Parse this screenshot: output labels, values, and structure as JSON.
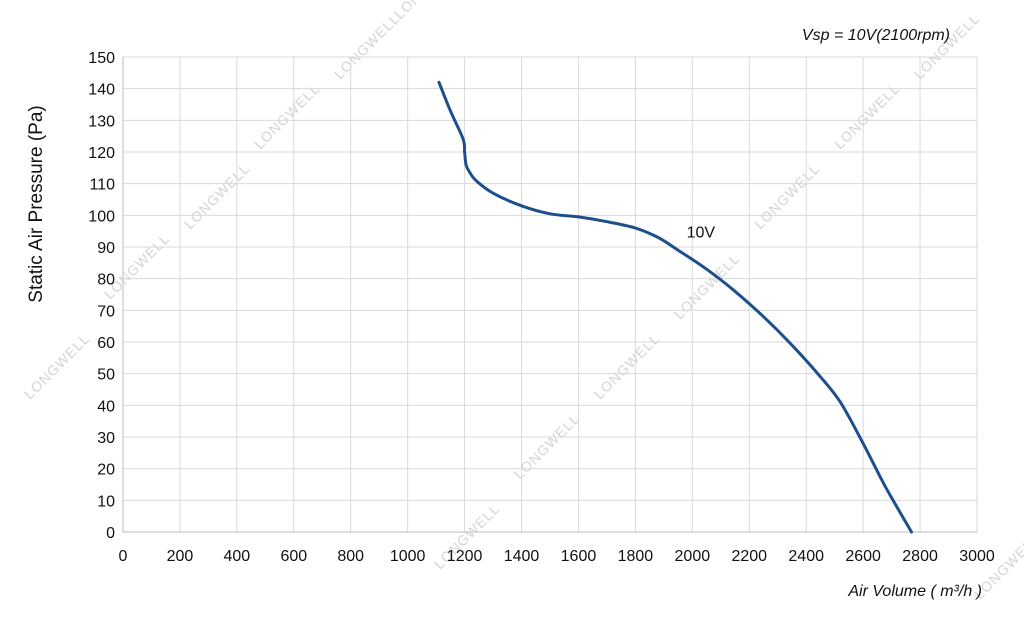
{
  "chart_data": {
    "type": "line",
    "title": "",
    "annotation": "Vsp = 10V(2100rpm)",
    "xlabel": "Air Volume ( m³/h )",
    "ylabel": "Static Air Pressure  (Pa)",
    "xlim": [
      0,
      3000
    ],
    "ylim": [
      0,
      150
    ],
    "x_ticks": [
      0,
      200,
      400,
      600,
      800,
      1000,
      1200,
      1400,
      1600,
      1800,
      2000,
      2200,
      2400,
      2600,
      2800,
      3000
    ],
    "y_ticks": [
      0,
      10,
      20,
      30,
      40,
      50,
      60,
      70,
      80,
      90,
      100,
      110,
      120,
      130,
      140,
      150
    ],
    "grid": true,
    "line_color": "#1f4e8c",
    "series": [
      {
        "name": "10V",
        "x": [
          1110,
          1150,
          1195,
          1200,
          1205,
          1215,
          1240,
          1300,
          1400,
          1500,
          1600,
          1700,
          1800,
          1880,
          1950,
          2050,
          2150,
          2250,
          2350,
          2450,
          2520,
          2600,
          2680,
          2770
        ],
        "y": [
          142,
          133,
          124,
          120,
          116,
          114,
          111,
          107,
          103,
          100.5,
          99.5,
          98,
          96,
          93,
          89,
          83,
          76,
          68,
          59,
          49,
          41,
          28,
          14,
          0
        ]
      }
    ],
    "watermark": "LONGWELL"
  }
}
